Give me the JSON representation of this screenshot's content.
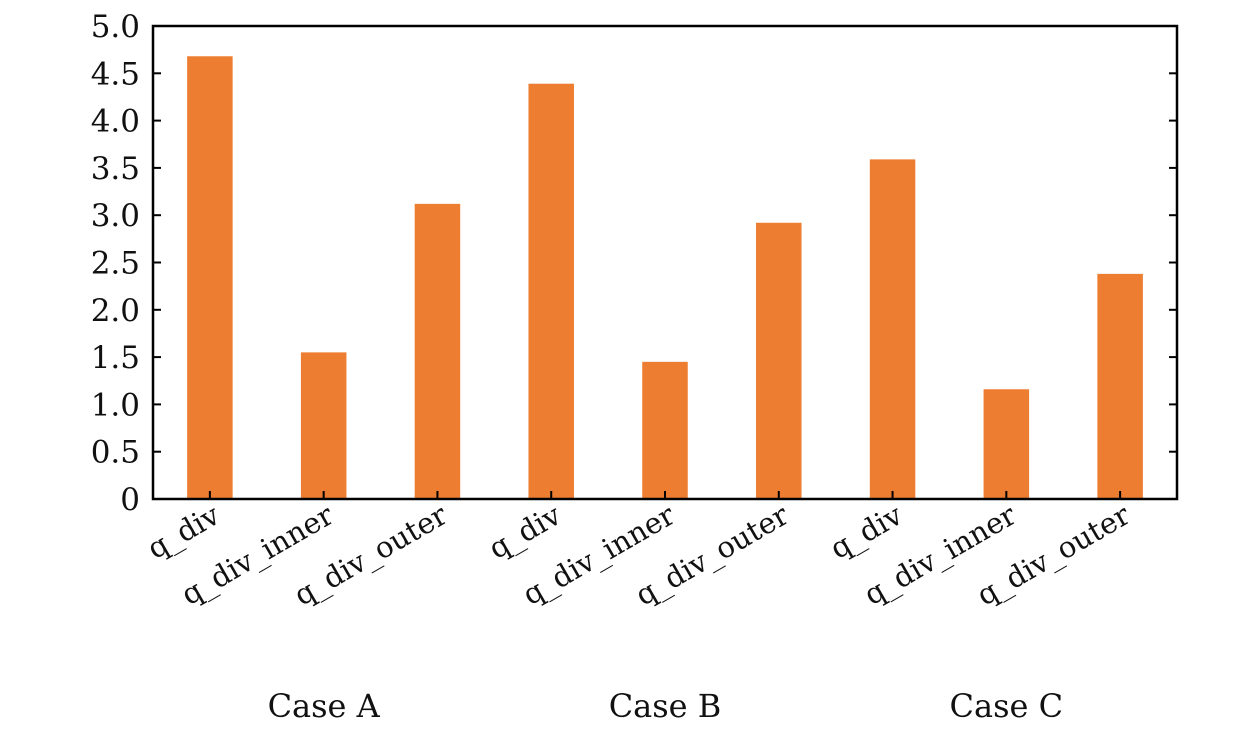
{
  "chart_data": {
    "type": "bar",
    "title": "",
    "xlabel": "",
    "ylabel": "",
    "ylim": [
      0,
      5.0
    ],
    "yticks": [
      0,
      0.5,
      1.0,
      1.5,
      2.0,
      2.5,
      3.0,
      3.5,
      4.0,
      4.5,
      5.0
    ],
    "ytick_labels": [
      "0",
      "0.5",
      "1.0",
      "1.5",
      "2.0",
      "2.5",
      "3.0",
      "3.5",
      "4.0",
      "4.5",
      "5.0"
    ],
    "grid": false,
    "bar_color": "#ED7D31",
    "categories": [
      "q_div",
      "q_div_inner",
      "q_div_outer",
      "q_div",
      "q_div_inner",
      "q_div_outer",
      "q_div",
      "q_div_inner",
      "q_div_outer"
    ],
    "values": [
      4.68,
      1.55,
      3.12,
      4.39,
      1.45,
      2.92,
      3.59,
      1.16,
      2.38
    ],
    "groups": [
      {
        "label": "Case A",
        "categories": [
          "q_div",
          "q_div_inner",
          "q_div_outer"
        ]
      },
      {
        "label": "Case B",
        "categories": [
          "q_div",
          "q_div_inner",
          "q_div_outer"
        ]
      },
      {
        "label": "Case C",
        "categories": [
          "q_div",
          "q_div_inner",
          "q_div_outer"
        ]
      }
    ]
  }
}
